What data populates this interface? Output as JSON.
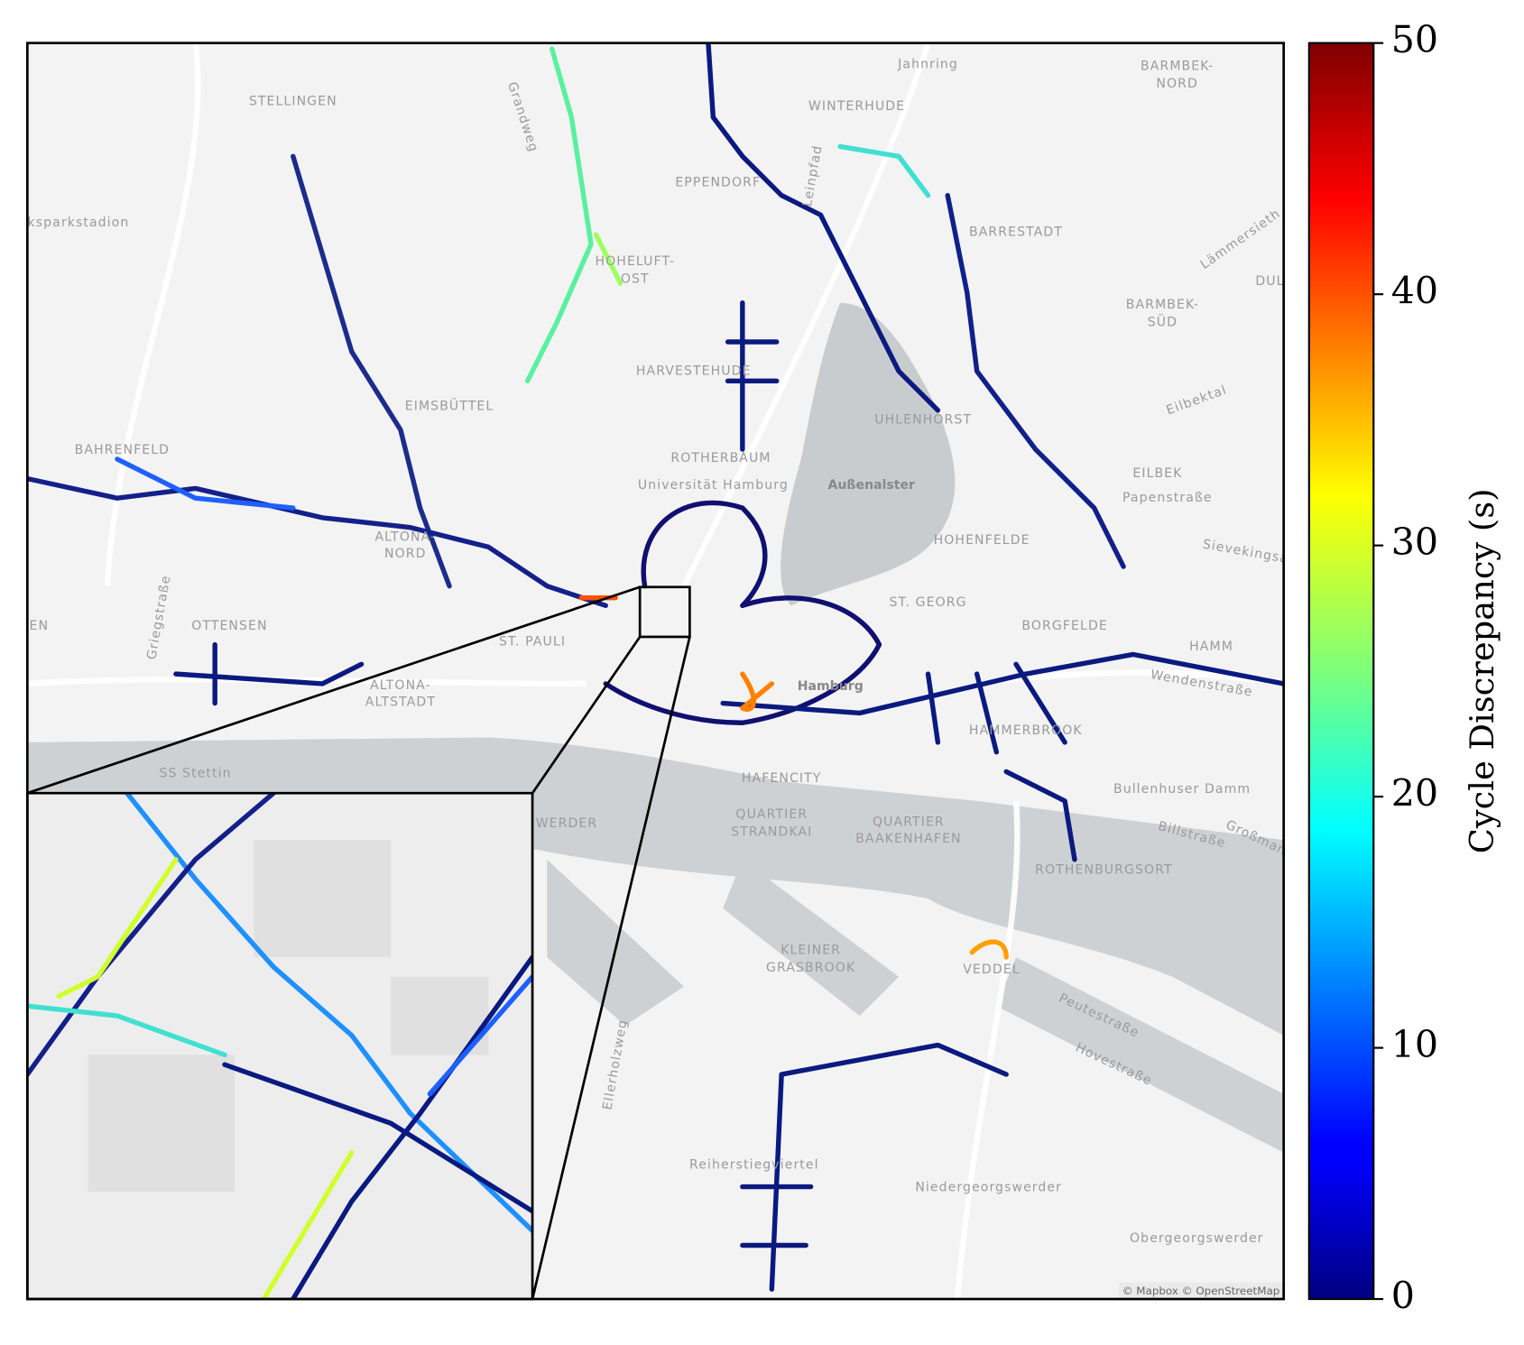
{
  "map": {
    "labels": [
      "STELLINGEN",
      "WINTERHUDE",
      "BARMBEK-",
      "NORD",
      "Jahnring",
      "Grandweg",
      "lksparkstadion",
      "EPPENDORF",
      "BARRESTADT",
      "Lämmersieth",
      "HOHELUFT-",
      "OST",
      "BARMBEK-",
      "SÜD",
      "HARVESTEHUDE",
      "EIMSBÜTTEL",
      "UHLENHORST",
      "Eilbektal",
      "BAHRENFELD",
      "ROTHERBAUM",
      "Universität Hamburg",
      "Außenalster",
      "EILBEK",
      "Papenstraße",
      "ALTONA-",
      "NORD",
      "HOHENFELDE",
      "Sievekingsa",
      "OTTENSEN",
      "ST. GEORG",
      "BORGFELDE",
      "HAMM",
      "ST. PAULI",
      "Hamburg",
      "ALTONA-",
      "ALTSTADT",
      "HAMMERBROOK",
      "Wendenstraße",
      "SS Stettin",
      "HAFENCITY",
      "QUARTIER",
      "STRANDKAI",
      "QUARTIER",
      "BAAKENHAFEN",
      "Bullenhuser Damm",
      "Billstraße",
      "Großmann",
      "ROTHENBURGSORT",
      "WERDER",
      "KLEINER",
      "GRASBROOK",
      "VEDDEL",
      "Peutestraße",
      "Hovestraße",
      "Ellerholzweg",
      "Reiherstiegviertel",
      "Niedergeorgswerder",
      "Obergeorgswerder",
      "Griegstraße",
      "Leinpfad",
      "DUL",
      "EN"
    ],
    "attribution": "© Mapbox © OpenStreetMap"
  },
  "colorbar": {
    "label": "Cycle Discrepancy (s)",
    "lim": [
      0,
      50
    ],
    "ticks": [
      0,
      10,
      20,
      30,
      40,
      50
    ],
    "colormap": "jet"
  }
}
